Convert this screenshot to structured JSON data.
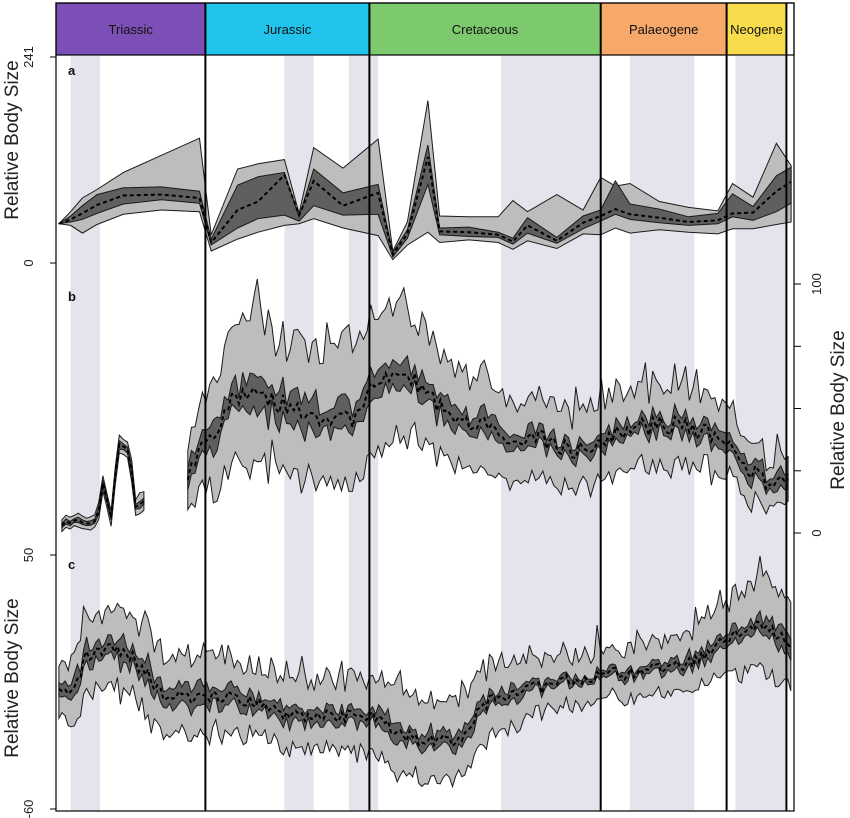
{
  "chart_data": {
    "type": "area",
    "periods": [
      {
        "name": "Triassic",
        "color": "#7b4fb5",
        "start": -252,
        "end": -201
      },
      {
        "name": "Jurassic",
        "color": "#22c4ec",
        "start": -201,
        "end": -145
      },
      {
        "name": "Cretaceous",
        "color": "#7dc96e",
        "start": -145,
        "end": -66
      },
      {
        "name": "Palaeogene",
        "color": "#f6a96b",
        "start": -66,
        "end": -23
      },
      {
        "name": "Neogene",
        "color": "#f9dc4c",
        "start": -23,
        "end": -2.6
      },
      {
        "name": "",
        "color": "#ffffff",
        "start": -2.6,
        "end": 0
      }
    ],
    "shaded_bands": [
      [
        -247,
        -237
      ],
      [
        -174,
        -164
      ],
      [
        -152,
        -142
      ],
      [
        -100,
        -66
      ],
      [
        -56,
        -34
      ],
      [
        -20,
        -3
      ]
    ],
    "x_range": [
      -252,
      0
    ],
    "panels": [
      {
        "letter": "a",
        "ylabel": "Relative Body Size",
        "ylabel_side": "left",
        "yticks": [
          0,
          241
        ],
        "ylim": [
          0,
          241
        ],
        "x": [
          -251,
          -247,
          -243,
          -238,
          -229,
          -216,
          -203,
          -199,
          -190,
          -183,
          -174,
          -169,
          -164,
          -154,
          -142,
          -137,
          -132,
          -125,
          -121,
          -111,
          -101,
          -96,
          -91,
          -81,
          -72,
          -66,
          -61,
          -56,
          -46,
          -36,
          -26,
          -21,
          -14,
          -6,
          -1
        ],
        "median": [
          46,
          51,
          58,
          68,
          79,
          80,
          76,
          24,
          62,
          72,
          103,
          56,
          96,
          67,
          82,
          10,
          34,
          124,
          37,
          36,
          33,
          25,
          44,
          26,
          47,
          55,
          63,
          57,
          53,
          48,
          50,
          58,
          59,
          84,
          95
        ],
        "inner_low": [
          46,
          48,
          51,
          58,
          69,
          74,
          70,
          21,
          41,
          52,
          56,
          49,
          67,
          56,
          57,
          7,
          29,
          92,
          33,
          31,
          30,
          22,
          35,
          23,
          40,
          49,
          57,
          51,
          47,
          44,
          46,
          54,
          50,
          60,
          70
        ],
        "inner_high": [
          46,
          55,
          67,
          80,
          88,
          89,
          84,
          28,
          91,
          101,
          106,
          54,
          110,
          82,
          92,
          12,
          39,
          138,
          41,
          42,
          36,
          29,
          53,
          30,
          55,
          62,
          96,
          69,
          63,
          54,
          58,
          81,
          66,
          102,
          112
        ],
        "outer_low": [
          46,
          44,
          35,
          45,
          57,
          62,
          60,
          14,
          28,
          36,
          44,
          46,
          52,
          41,
          32,
          4,
          21,
          36,
          24,
          27,
          24,
          16,
          26,
          17,
          34,
          33,
          41,
          35,
          39,
          36,
          34,
          40,
          40,
          45,
          48
        ],
        "outer_high": [
          46,
          60,
          76,
          86,
          106,
          126,
          146,
          33,
          110,
          116,
          121,
          58,
          135,
          111,
          145,
          14,
          48,
          190,
          55,
          54,
          54,
          73,
          60,
          80,
          62,
          100,
          90,
          93,
          72,
          65,
          61,
          93,
          77,
          140,
          114
        ]
      },
      {
        "letter": "b",
        "ylabel": "Relative Body Size",
        "ylabel_side": "right",
        "yticks": [
          0,
          100
        ],
        "ylim": [
          0,
          100
        ]
      },
      {
        "letter": "c",
        "ylabel": "Relative Body Size",
        "ylabel_side": "left",
        "yticks": [
          50,
          -60
        ],
        "ylim": [
          -60,
          50
        ]
      }
    ]
  }
}
